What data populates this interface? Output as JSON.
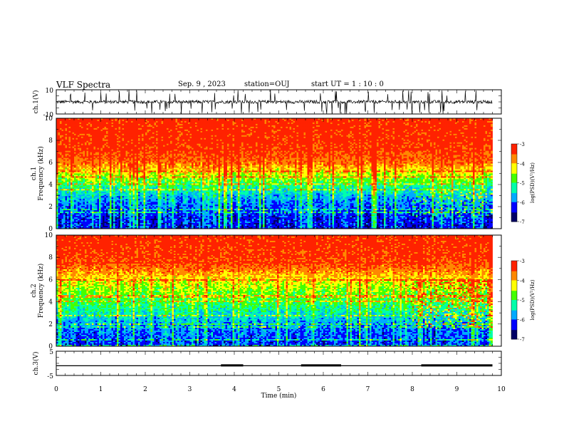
{
  "header": {
    "title": "VLF Spectra",
    "date": "Sep. 9 , 2023",
    "station": "station=OUJ",
    "start_ut": "start  UT =  1 : 10 : 0"
  },
  "chart_data": [
    {
      "type": "line",
      "panel": "ch1-waveform",
      "ylabel": "ch.1(V)",
      "ylim": [
        -10,
        10
      ],
      "yticks": [
        "10",
        "-10"
      ],
      "xlim": [
        0,
        10
      ],
      "series": [
        {
          "baseline": 0,
          "noise_amplitude": 3,
          "spike_amplitude": 10
        }
      ]
    },
    {
      "type": "heatmap",
      "panel": "ch1-spectrogram",
      "ylabel": "ch.1\nFrequency  (kHz)",
      "ylim": [
        0,
        10
      ],
      "yticks": [
        "0",
        "2",
        "4",
        "6",
        "8",
        "10"
      ],
      "xlim": [
        0,
        9.8
      ],
      "zlabel": "log(PSD)(V²/Hz)",
      "zlim": [
        -7,
        -3
      ],
      "zticks": [
        "-3",
        "-4",
        "-5",
        "-6",
        "-7"
      ],
      "band_profile_khz_log_psd": [
        [
          0,
          -6.3
        ],
        [
          1,
          -6.2
        ],
        [
          2,
          -6.0
        ],
        [
          3,
          -5.6
        ],
        [
          4,
          -5.0
        ],
        [
          5,
          -4.3
        ],
        [
          6,
          -3.6
        ],
        [
          7,
          -3.35
        ],
        [
          8,
          -3.25
        ],
        [
          10,
          -3.2
        ]
      ]
    },
    {
      "type": "heatmap",
      "panel": "ch2-spectrogram",
      "ylabel": "ch.2\nFrequency  (kHz)",
      "ylim": [
        0,
        10
      ],
      "yticks": [
        "0",
        "2",
        "4",
        "6",
        "8",
        "10"
      ],
      "xlim": [
        0,
        9.8
      ],
      "zlabel": "log(PSD)(V²/Hz)",
      "zlim": [
        -7,
        -3
      ],
      "zticks": [
        "-3",
        "-4",
        "-5",
        "-6",
        "-7"
      ],
      "band_profile_khz_log_psd": [
        [
          0,
          -6.2
        ],
        [
          1,
          -6.0
        ],
        [
          2,
          -5.8
        ],
        [
          3,
          -5.3
        ],
        [
          4,
          -4.9
        ],
        [
          5,
          -4.6
        ],
        [
          6,
          -4.2
        ],
        [
          7,
          -3.6
        ],
        [
          8,
          -3.3
        ],
        [
          10,
          -3.2
        ]
      ]
    },
    {
      "type": "line",
      "panel": "ch3-timecode",
      "ylabel": "ch.3(V)",
      "ylim": [
        -5,
        5
      ],
      "yticks": [
        "5",
        "-5"
      ],
      "xlim": [
        0,
        10
      ],
      "series": [
        {
          "baseline": -1.0,
          "pulses": [
            [
              3.7,
              4.2,
              -0.4
            ],
            [
              5.5,
              6.4,
              -0.4
            ],
            [
              8.2,
              9.8,
              -0.4
            ]
          ],
          "end": 9.8
        }
      ]
    }
  ],
  "xaxis": {
    "label": "Time  (min)",
    "range": [
      0,
      10
    ],
    "ticks": [
      "0",
      "1",
      "2",
      "3",
      "4",
      "5",
      "6",
      "7",
      "8",
      "9",
      "10"
    ]
  },
  "colors": {
    "scale": [
      "#000066",
      "#0000ff",
      "#00aaff",
      "#00ffaa",
      "#44ff00",
      "#ffff00",
      "#ff8800",
      "#ff2200"
    ],
    "trace": "#000000"
  }
}
